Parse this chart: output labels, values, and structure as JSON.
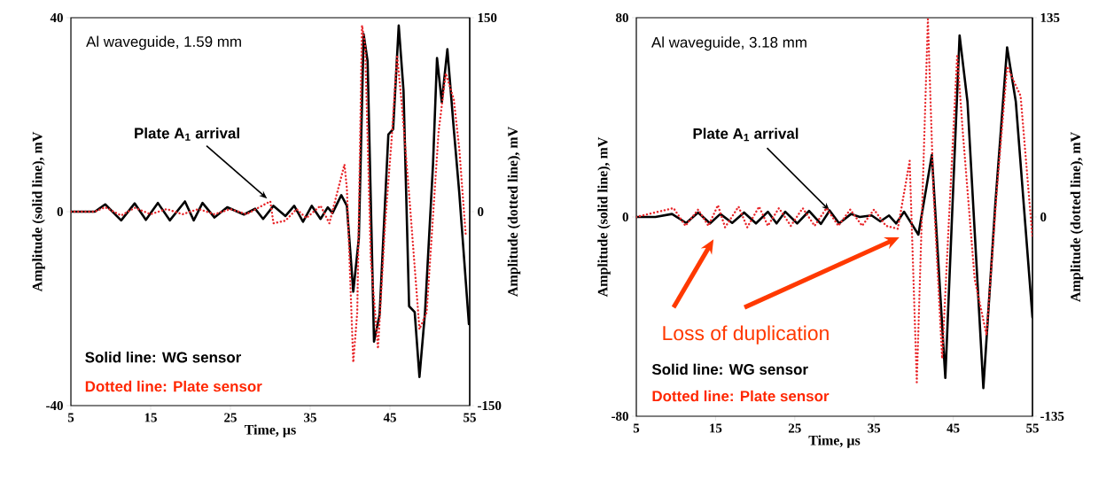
{
  "chart_data": [
    {
      "type": "line",
      "title": "Al waveguide, 1.59 mm",
      "xlabel": "Time, µs",
      "ylabel": "Amplitude (solid line), mV",
      "y2label": "Amplitude (dotted line), mV",
      "xlim": [
        5,
        55
      ],
      "xticks": [
        5,
        15,
        25,
        35,
        45,
        55
      ],
      "ylim": [
        -40,
        40
      ],
      "yticks": [
        -40,
        0,
        40
      ],
      "y2lim": [
        -150,
        150
      ],
      "y2ticks": [
        -150,
        0,
        150
      ],
      "series": [
        {
          "color": "#000000",
          "line_style": "solid",
          "x": [
            5,
            8,
            9.3,
            11.3,
            13,
            14.4,
            15.9,
            17.4,
            19.3,
            20.4,
            21.5,
            23,
            24.6,
            26.7,
            28.1,
            29.1,
            30.4,
            31.9,
            33,
            34.1,
            35.2,
            36.3,
            37.2,
            37.8,
            38.9,
            39.6,
            40.4,
            41.1,
            41.7,
            42.2,
            43,
            43.7,
            44.8,
            45.4,
            46.1,
            46.7,
            47.4,
            48.1,
            48.7,
            49.4,
            50.4,
            50.9,
            51.5,
            52.2,
            53,
            53.7,
            54.9
          ],
          "values": [
            0,
            0,
            1.5,
            -1.8,
            1.7,
            -1.7,
            1.8,
            -1.8,
            2.1,
            -1.8,
            1.8,
            -1.2,
            0.9,
            -0.6,
            0.6,
            -1.5,
            1.2,
            -0.9,
            1.2,
            -2.1,
            1.2,
            -1.5,
            0.9,
            -0.3,
            3.4,
            1.2,
            -16.5,
            -5.5,
            36.6,
            31,
            -26.8,
            -21.3,
            15.9,
            17,
            38.4,
            25,
            -19.5,
            -20.7,
            -34.1,
            -20.7,
            9.8,
            31.7,
            22.6,
            33.5,
            17.1,
            3.7,
            -23.2
          ]
        },
        {
          "color": "#e8262a",
          "line_style": "dotted",
          "axis": "y2",
          "x": [
            5,
            8,
            9.3,
            11.3,
            13,
            15,
            17,
            19,
            21,
            23,
            25,
            27,
            28.5,
            30,
            30.4,
            31.9,
            33.3,
            34.5,
            36.3,
            37.4,
            39.3,
            39.6,
            40.4,
            40.9,
            41.5,
            41.9,
            42.6,
            43.5,
            44.4,
            45.2,
            45.9,
            46.5,
            47.4,
            48.7,
            49.6,
            51.1,
            52,
            53,
            53.7,
            54.5
          ],
          "values": [
            0,
            0,
            3.4,
            -3,
            3,
            -2,
            2,
            -2,
            2,
            -2,
            2,
            -2,
            3,
            8,
            -9,
            -7,
            2,
            -5,
            4.6,
            -9,
            36.6,
            18,
            -116.6,
            -78,
            144,
            128,
            -36.6,
            -106,
            -9,
            55,
            121,
            82,
            13.7,
            -91,
            -78,
            62,
            107,
            87,
            48,
            -18
          ]
        }
      ],
      "annotations": [
        {
          "text": "Plate A$_{1}$ arrival",
          "x": 29.6,
          "y": 2.7
        },
        "Solid line: WG sensor",
        "Dotted line: Plate sensor"
      ]
    },
    {
      "type": "line",
      "title": "Al waveguide, 3.18 mm",
      "xlabel": "Time, µs",
      "ylabel": "Amplitude (solid line), mV",
      "y2label": "Amplitude (dotted line), mV",
      "xlim": [
        5,
        55
      ],
      "xticks": [
        5,
        15,
        25,
        35,
        45,
        55
      ],
      "ylim": [
        -80,
        80
      ],
      "yticks": [
        -80,
        0,
        80
      ],
      "y2lim": [
        -135,
        135
      ],
      "y2ticks": [
        -135,
        0,
        135
      ],
      "series": [
        {
          "color": "#000000",
          "line_style": "solid",
          "x": [
            5,
            7.4,
            9.5,
            11.3,
            12.8,
            14.3,
            15.6,
            17.1,
            18.6,
            20.1,
            21.6,
            22.7,
            23.8,
            25.3,
            26.8,
            28.3,
            29.4,
            30.6,
            32.1,
            33.2,
            34.7,
            35.8,
            36.9,
            37.8,
            38.8,
            40.6,
            42.3,
            44,
            45.8,
            46.8,
            48.8,
            50.3,
            51.8,
            52.9,
            55
          ],
          "values": [
            0,
            0,
            1.2,
            -2.4,
            1.8,
            -2.6,
            1.2,
            -2.4,
            1.8,
            -2.6,
            2.1,
            -2.6,
            2.1,
            -2.6,
            2.4,
            -2.8,
            2.6,
            -2.6,
            1.2,
            0,
            0.6,
            -1.8,
            0.6,
            -2.6,
            2.1,
            -7.1,
            24.9,
            -64.6,
            72.9,
            46.2,
            -68.7,
            4.7,
            68.1,
            46.2,
            -40.3
          ]
        },
        {
          "color": "#e8262a",
          "line_style": "dotted",
          "axis": "y2",
          "x": [
            5,
            9.7,
            11.2,
            12.8,
            14.1,
            15.3,
            16.2,
            17.9,
            19,
            20.5,
            21.6,
            23,
            24.5,
            26,
            27.5,
            29,
            30.5,
            32,
            33.5,
            35,
            36.5,
            38,
            39.5,
            40.4,
            41.8,
            42.5,
            43.6,
            44.4,
            45.5,
            46.2,
            47.7,
            49.2,
            50.5,
            51.8,
            53.5,
            55
          ],
          "values": [
            0,
            6,
            -6,
            5,
            -6,
            8,
            -7,
            7,
            -7,
            7,
            -6,
            6,
            -6,
            6,
            -6,
            6,
            -6,
            5,
            -6,
            5,
            -6,
            -8,
            38,
            -112,
            134,
            18,
            -96,
            -8,
            110,
            58,
            -42,
            -80,
            18,
            102,
            82,
            -14
          ]
        }
      ],
      "annotations": [
        {
          "text": "Plate A$_{1}$ arrival",
          "x": 29.4,
          "y": 2.6
        },
        "Loss of duplication",
        "Solid line: WG sensor",
        "Dotted line: Plate sensor"
      ]
    }
  ]
}
